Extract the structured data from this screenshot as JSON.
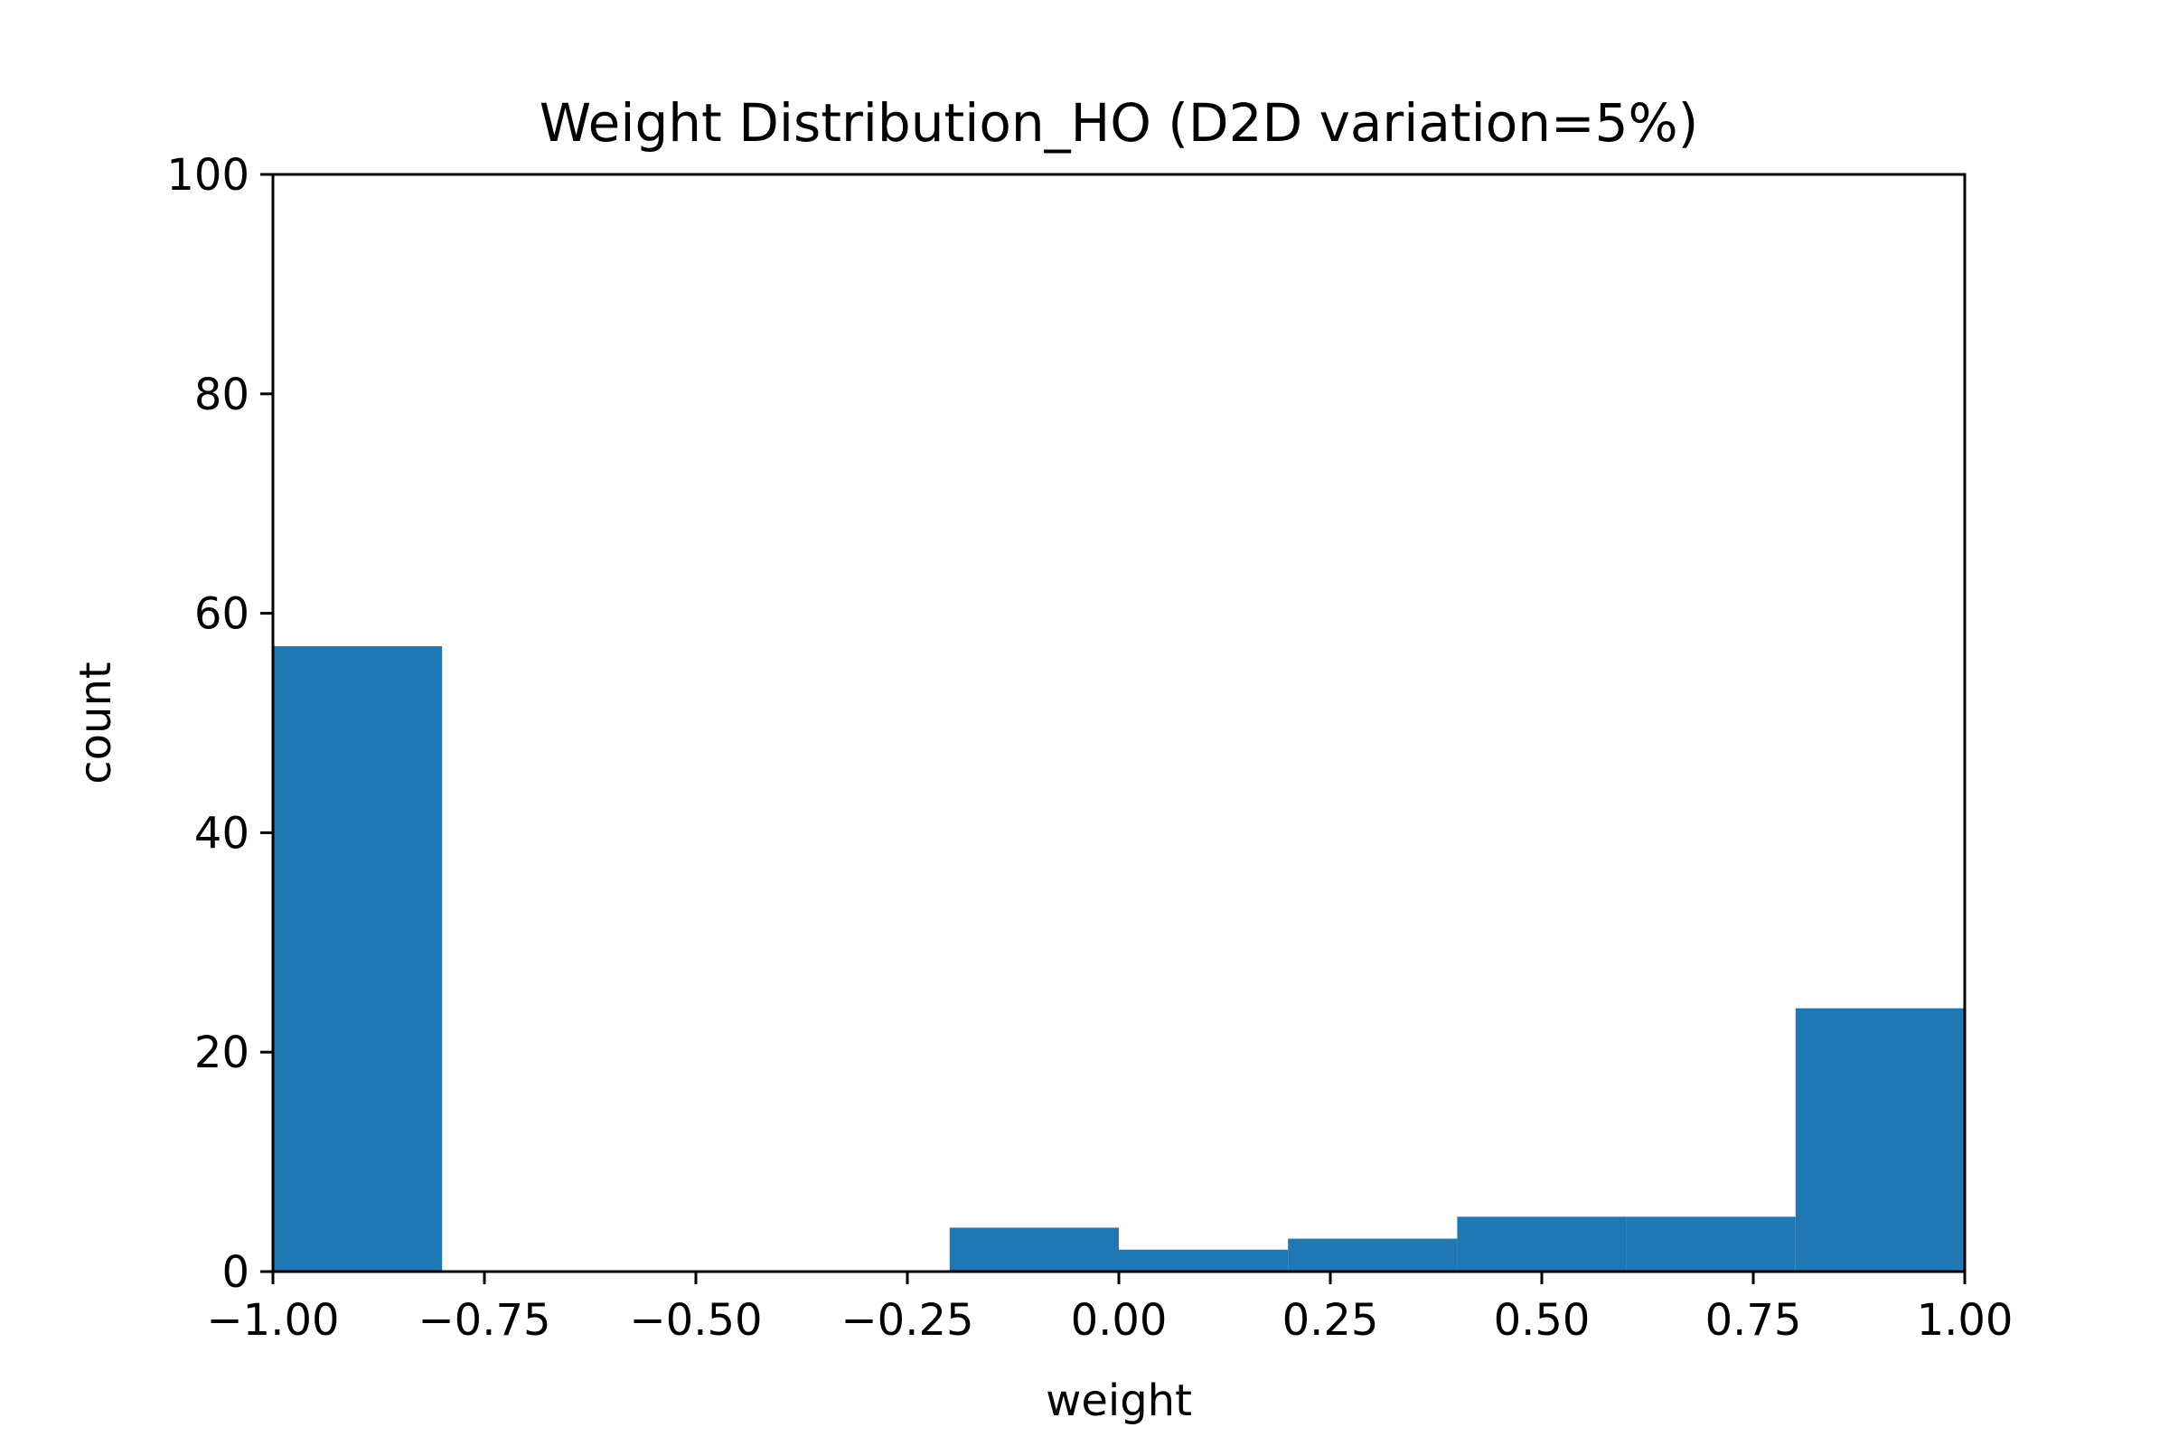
{
  "chart_data": {
    "type": "bar",
    "title": "Weight Distribution_HO (D2D variation=5%)",
    "xlabel": "weight",
    "ylabel": "count",
    "xlim": [
      -1.0,
      1.0
    ],
    "ylim": [
      0,
      100
    ],
    "x_ticks": [
      "−1.00",
      "−0.75",
      "−0.50",
      "−0.25",
      "0.00",
      "0.25",
      "0.50",
      "0.75",
      "1.00"
    ],
    "x_tick_values": [
      -1.0,
      -0.75,
      -0.5,
      -0.25,
      0.0,
      0.25,
      0.5,
      0.75,
      1.0
    ],
    "y_ticks": [
      "0",
      "20",
      "40",
      "60",
      "80",
      "100"
    ],
    "y_tick_values": [
      0,
      20,
      40,
      60,
      80,
      100
    ],
    "bins": [
      {
        "start": -1.0,
        "end": -0.8,
        "count": 57
      },
      {
        "start": -0.8,
        "end": -0.6,
        "count": 0
      },
      {
        "start": -0.6,
        "end": -0.4,
        "count": 0
      },
      {
        "start": -0.4,
        "end": -0.2,
        "count": 0
      },
      {
        "start": -0.2,
        "end": 0.0,
        "count": 4
      },
      {
        "start": 0.0,
        "end": 0.2,
        "count": 2
      },
      {
        "start": 0.2,
        "end": 0.4,
        "count": 3
      },
      {
        "start": 0.4,
        "end": 0.6,
        "count": 5
      },
      {
        "start": 0.6,
        "end": 0.8,
        "count": 5
      },
      {
        "start": 0.8,
        "end": 1.0,
        "count": 24
      }
    ],
    "bar_color": "#1f77b4",
    "grid": false,
    "legend": "none"
  }
}
